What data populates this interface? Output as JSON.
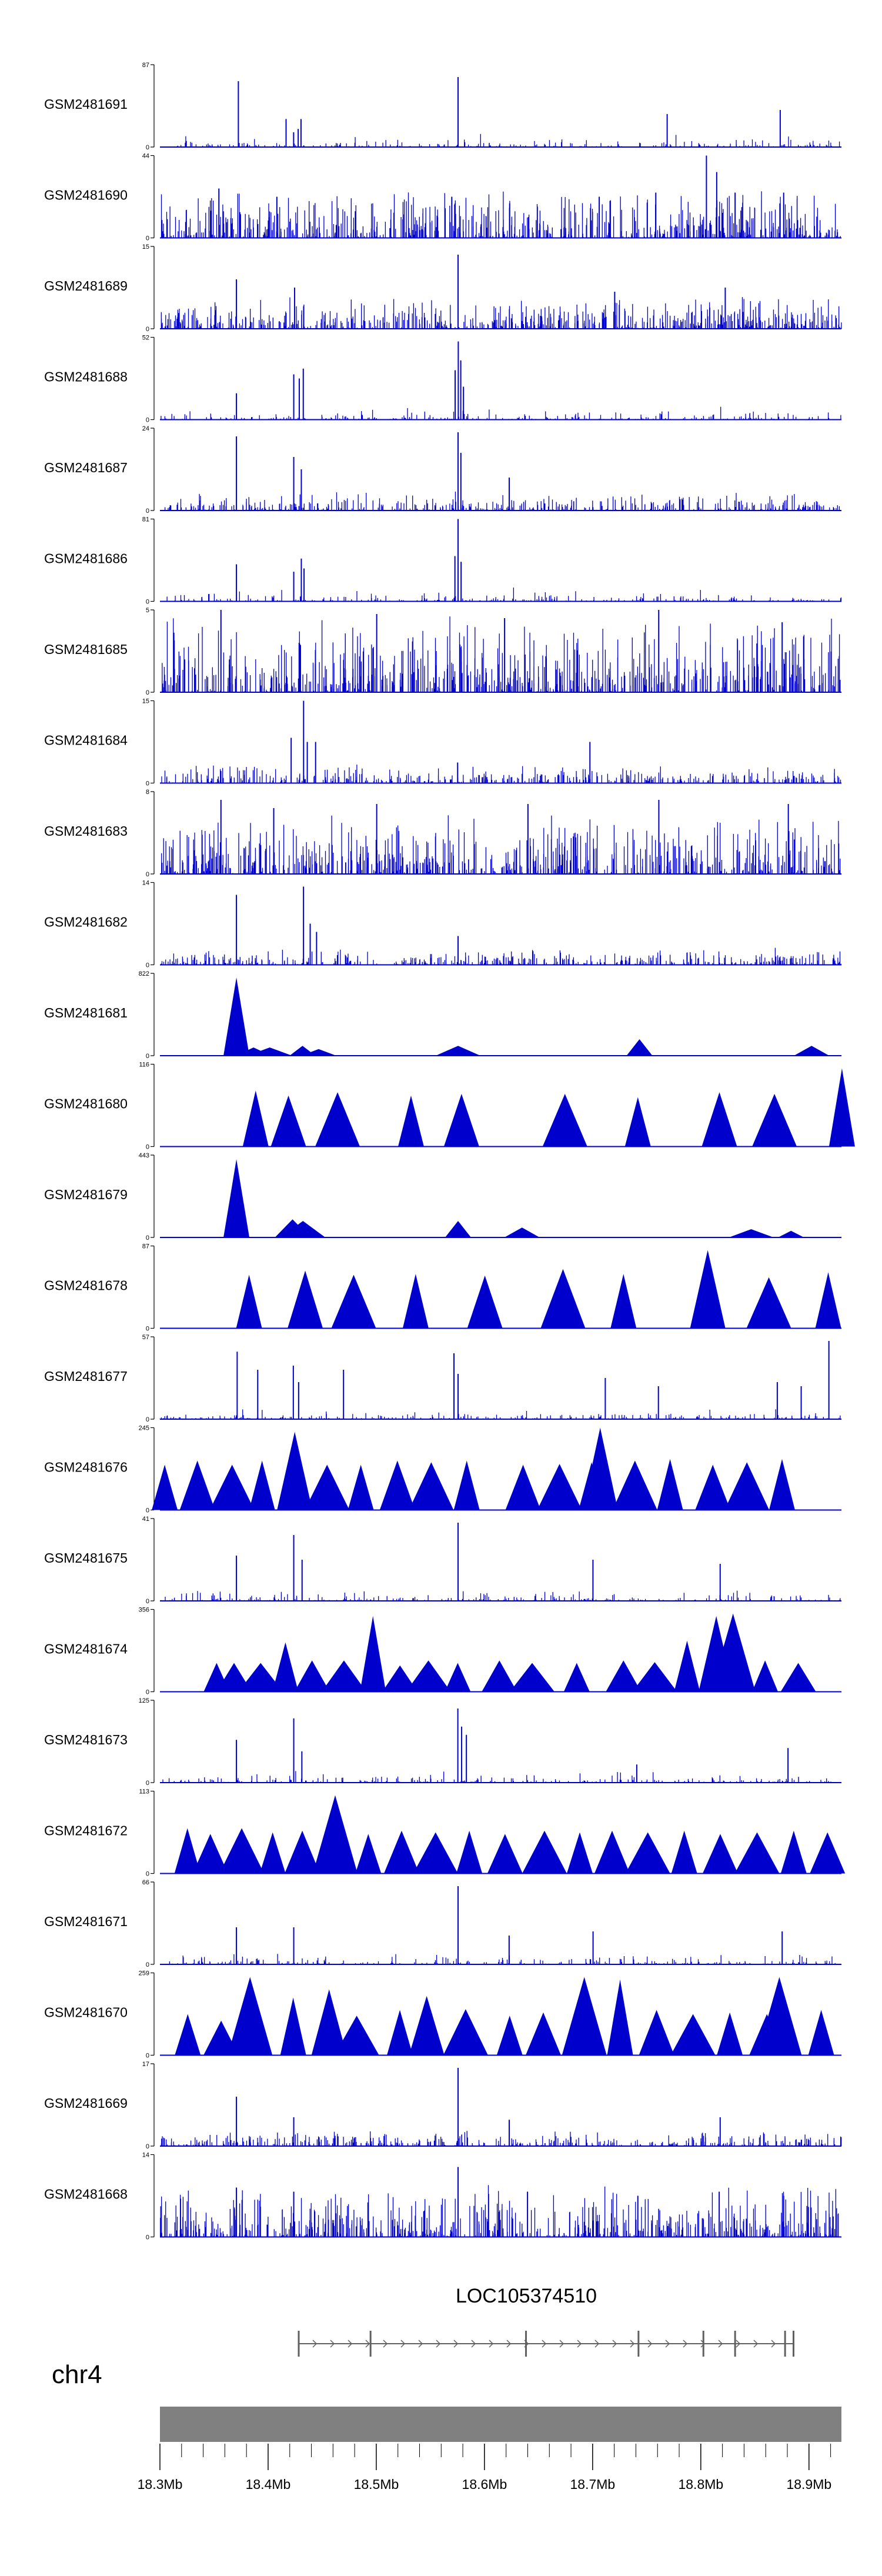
{
  "colors": {
    "signal": "#0000cc",
    "axis": "#000000",
    "ideogram": "#808080",
    "gene": "#606060"
  },
  "chart_data": {
    "type": "area",
    "tracks": [
      {
        "name": "GSM2481691",
        "ymax": "87",
        "ymin": "0",
        "style": "sparse",
        "base": 3,
        "noise": 5,
        "peaks": [
          [
            18.3725,
            0.8
          ],
          [
            18.4166,
            0.34
          ],
          [
            18.4236,
            0.18
          ],
          [
            18.4278,
            0.22
          ],
          [
            18.4304,
            0.34
          ],
          [
            18.5756,
            0.85
          ],
          [
            18.7689,
            0.4
          ],
          [
            18.8734,
            0.45
          ]
        ]
      },
      {
        "name": "GSM2481690",
        "ymax": "44",
        "ymin": "0",
        "style": "dense",
        "base": 22,
        "noise": 40,
        "peaks": [
          [
            18.3545,
            0.6
          ],
          [
            18.4081,
            0.5
          ],
          [
            18.5698,
            0.5
          ],
          [
            18.6233,
            0.42
          ],
          [
            18.7061,
            0.5
          ],
          [
            18.7584,
            0.55
          ],
          [
            18.8052,
            1.0
          ],
          [
            18.8147,
            0.8
          ],
          [
            18.8317,
            0.55
          ],
          [
            18.8766,
            0.55
          ]
        ]
      },
      {
        "name": "GSM2481689",
        "ymax": "15",
        "ymin": "0",
        "style": "dense",
        "base": 12,
        "noise": 30,
        "peaks": [
          [
            18.3707,
            0.6
          ],
          [
            18.4245,
            0.5
          ],
          [
            18.5756,
            0.9
          ],
          [
            18.7204,
            0.45
          ],
          [
            18.8226,
            0.5
          ]
        ]
      },
      {
        "name": "GSM2481688",
        "ymax": "52",
        "ymin": "0",
        "style": "sparse",
        "base": 3,
        "noise": 5,
        "peaks": [
          [
            18.3707,
            0.32
          ],
          [
            18.4237,
            0.55
          ],
          [
            18.4288,
            0.5
          ],
          [
            18.4325,
            0.62
          ],
          [
            18.5729,
            0.6
          ],
          [
            18.5758,
            0.95
          ],
          [
            18.5781,
            0.72
          ],
          [
            18.5806,
            0.4
          ]
        ]
      },
      {
        "name": "GSM2481687",
        "ymax": "24",
        "ymin": "0",
        "style": "medium",
        "base": 6,
        "noise": 18,
        "peaks": [
          [
            18.3707,
            0.9
          ],
          [
            18.4237,
            0.65
          ],
          [
            18.4307,
            0.5
          ],
          [
            18.5756,
            0.95
          ],
          [
            18.5782,
            0.7
          ],
          [
            18.6229,
            0.4
          ]
        ]
      },
      {
        "name": "GSM2481686",
        "ymax": "81",
        "ymin": "0",
        "style": "sparse",
        "base": 3,
        "noise": 5,
        "peaks": [
          [
            18.3707,
            0.45
          ],
          [
            18.4237,
            0.36
          ],
          [
            18.4307,
            0.52
          ],
          [
            18.4332,
            0.4
          ],
          [
            18.5727,
            0.55
          ],
          [
            18.5756,
            1.0
          ],
          [
            18.5784,
            0.48
          ]
        ]
      },
      {
        "name": "GSM2481685",
        "ymax": "5",
        "ymin": "0",
        "style": "dense",
        "base": 50,
        "noise": 45,
        "peaks": [
          [
            18.3564,
            1.0
          ],
          [
            18.5004,
            0.95
          ],
          [
            18.6186,
            0.9
          ],
          [
            18.7611,
            1.0
          ],
          [
            18.8752,
            0.85
          ]
        ]
      },
      {
        "name": "GSM2481684",
        "ymax": "15",
        "ymin": "0",
        "style": "medium",
        "base": 6,
        "noise": 18,
        "peaks": [
          [
            18.4213,
            0.55
          ],
          [
            18.4328,
            1.0
          ],
          [
            18.4362,
            0.5
          ],
          [
            18.4439,
            0.5
          ],
          [
            18.5752,
            0.25
          ],
          [
            18.6975,
            0.5
          ]
        ]
      },
      {
        "name": "GSM2481683",
        "ymax": "8",
        "ymin": "0",
        "style": "dense",
        "base": 35,
        "noise": 40,
        "peaks": [
          [
            18.3564,
            0.9
          ],
          [
            18.4052,
            0.8
          ],
          [
            18.5004,
            0.85
          ],
          [
            18.6402,
            0.85
          ],
          [
            18.7612,
            0.9
          ],
          [
            18.8809,
            0.85
          ]
        ]
      },
      {
        "name": "GSM2481682",
        "ymax": "14",
        "ymin": "0",
        "style": "medium",
        "base": 5,
        "noise": 16,
        "peaks": [
          [
            18.3707,
            0.85
          ],
          [
            18.4327,
            0.95
          ],
          [
            18.4389,
            0.5
          ],
          [
            18.4448,
            0.4
          ],
          [
            18.5756,
            0.35
          ]
        ]
      },
      {
        "name": "GSM2481681",
        "ymax": "822",
        "ymin": "0",
        "style": "tri",
        "base": 0,
        "noise": 0,
        "peaks": [
          [
            18.3707,
            0.95
          ],
          [
            18.3865,
            0.1
          ],
          [
            18.4015,
            0.1
          ],
          [
            18.4318,
            0.12
          ],
          [
            18.4467,
            0.08
          ],
          [
            18.5756,
            0.12
          ],
          [
            18.7433,
            0.2
          ],
          [
            18.9024,
            0.12
          ]
        ]
      },
      {
        "name": "GSM2481680",
        "ymax": "116",
        "ymin": "0",
        "style": "tri",
        "base": 0,
        "noise": 0,
        "peaks": [
          [
            18.3885,
            0.68
          ],
          [
            18.4188,
            0.62
          ],
          [
            18.4642,
            0.66
          ],
          [
            18.5321,
            0.62
          ],
          [
            18.5788,
            0.64
          ],
          [
            18.6744,
            0.64
          ],
          [
            18.7418,
            0.6
          ],
          [
            18.8172,
            0.66
          ],
          [
            18.8681,
            0.64
          ],
          [
            18.9305,
            0.95
          ]
        ]
      },
      {
        "name": "GSM2481679",
        "ymax": "443",
        "ymin": "0",
        "style": "tri",
        "base": 0,
        "noise": 0,
        "peaks": [
          [
            18.3707,
            0.95
          ],
          [
            18.4226,
            0.22
          ],
          [
            18.4322,
            0.2
          ],
          [
            18.5756,
            0.2
          ],
          [
            18.6347,
            0.12
          ],
          [
            18.8466,
            0.1
          ],
          [
            18.8834,
            0.08
          ]
        ]
      },
      {
        "name": "GSM2481678",
        "ymax": "87",
        "ymin": "0",
        "style": "tri",
        "base": 0,
        "noise": 0,
        "peaks": [
          [
            18.3824,
            0.65
          ],
          [
            18.4343,
            0.7
          ],
          [
            18.4791,
            0.65
          ],
          [
            18.5364,
            0.66
          ],
          [
            18.6004,
            0.64
          ],
          [
            18.6726,
            0.72
          ],
          [
            18.7285,
            0.66
          ],
          [
            18.8064,
            0.95
          ],
          [
            18.8629,
            0.62
          ],
          [
            18.9178,
            0.68
          ]
        ]
      },
      {
        "name": "GSM2481677",
        "ymax": "57",
        "ymin": "0",
        "style": "sparse",
        "base": 3,
        "noise": 6,
        "peaks": [
          [
            18.3714,
            0.82
          ],
          [
            18.3904,
            0.6
          ],
          [
            18.4233,
            0.65
          ],
          [
            18.4282,
            0.45
          ],
          [
            18.4697,
            0.6
          ],
          [
            18.5718,
            0.8
          ],
          [
            18.5756,
            0.55
          ],
          [
            18.7117,
            0.5
          ],
          [
            18.7608,
            0.4
          ],
          [
            18.8707,
            0.45
          ],
          [
            18.8928,
            0.4
          ],
          [
            18.9184,
            0.95
          ]
        ]
      },
      {
        "name": "GSM2481676",
        "ymax": "245",
        "ymin": "0",
        "style": "tri",
        "base": 0,
        "noise": 0,
        "peaks": [
          [
            18.3044,
            0.55
          ],
          [
            18.3346,
            0.6
          ],
          [
            18.3667,
            0.55
          ],
          [
            18.3944,
            0.6
          ],
          [
            18.4246,
            0.95
          ],
          [
            18.4545,
            0.55
          ],
          [
            18.4857,
            0.55
          ],
          [
            18.5195,
            0.6
          ],
          [
            18.5508,
            0.58
          ],
          [
            18.5836,
            0.6
          ],
          [
            18.6357,
            0.55
          ],
          [
            18.6694,
            0.56
          ],
          [
            18.699,
            0.58
          ],
          [
            18.707,
            1.0
          ],
          [
            18.7391,
            0.6
          ],
          [
            18.7716,
            0.62
          ],
          [
            18.8111,
            0.55
          ],
          [
            18.8426,
            0.58
          ],
          [
            18.8751,
            0.62
          ]
        ]
      },
      {
        "name": "GSM2481675",
        "ymax": "41",
        "ymin": "0",
        "style": "sparse",
        "base": 4,
        "noise": 8,
        "peaks": [
          [
            18.3707,
            0.55
          ],
          [
            18.4237,
            0.8
          ],
          [
            18.4314,
            0.5
          ],
          [
            18.5756,
            0.95
          ],
          [
            18.7003,
            0.5
          ],
          [
            18.8179,
            0.45
          ]
        ]
      },
      {
        "name": "GSM2481674",
        "ymax": "356",
        "ymin": "0",
        "style": "tri",
        "base": 0,
        "noise": 0,
        "peaks": [
          [
            18.3524,
            0.35
          ],
          [
            18.3685,
            0.35
          ],
          [
            18.3931,
            0.35
          ],
          [
            18.416,
            0.6
          ],
          [
            18.4406,
            0.38
          ],
          [
            18.4701,
            0.38
          ],
          [
            18.4969,
            0.92
          ],
          [
            18.5219,
            0.32
          ],
          [
            18.5482,
            0.38
          ],
          [
            18.5753,
            0.35
          ],
          [
            18.6138,
            0.38
          ],
          [
            18.6441,
            0.35
          ],
          [
            18.6853,
            0.35
          ],
          [
            18.7285,
            0.38
          ],
          [
            18.7574,
            0.36
          ],
          [
            18.7873,
            0.62
          ],
          [
            18.8143,
            0.92
          ],
          [
            18.8298,
            0.95
          ],
          [
            18.8594,
            0.38
          ],
          [
            18.8901,
            0.35
          ]
        ]
      },
      {
        "name": "GSM2481673",
        "ymax": "125",
        "ymin": "0",
        "style": "sparse",
        "base": 2,
        "noise": 4,
        "peaks": [
          [
            18.3707,
            0.52
          ],
          [
            18.4237,
            0.78
          ],
          [
            18.4312,
            0.38
          ],
          [
            18.5754,
            0.9
          ],
          [
            18.5789,
            0.68
          ],
          [
            18.5833,
            0.58
          ],
          [
            18.7408,
            0.22
          ],
          [
            18.8806,
            0.42
          ]
        ]
      },
      {
        "name": "GSM2481672",
        "ymax": "113",
        "ymin": "0",
        "style": "tri",
        "base": 0,
        "noise": 0,
        "peaks": [
          [
            18.3254,
            0.55
          ],
          [
            18.3466,
            0.48
          ],
          [
            18.3756,
            0.55
          ],
          [
            18.4042,
            0.5
          ],
          [
            18.4316,
            0.52
          ],
          [
            18.462,
            0.95
          ],
          [
            18.4926,
            0.48
          ],
          [
            18.5234,
            0.52
          ],
          [
            18.5548,
            0.5
          ],
          [
            18.586,
            0.52
          ],
          [
            18.619,
            0.48
          ],
          [
            18.6555,
            0.52
          ],
          [
            18.6881,
            0.5
          ],
          [
            18.718,
            0.52
          ],
          [
            18.751,
            0.5
          ],
          [
            18.7847,
            0.52
          ],
          [
            18.818,
            0.48
          ],
          [
            18.852,
            0.5
          ],
          [
            18.8859,
            0.52
          ],
          [
            18.9171,
            0.5
          ]
        ]
      },
      {
        "name": "GSM2481671",
        "ymax": "66",
        "ymin": "0",
        "style": "sparse",
        "base": 4,
        "noise": 7,
        "peaks": [
          [
            18.3707,
            0.45
          ],
          [
            18.4237,
            0.45
          ],
          [
            18.5756,
            0.95
          ],
          [
            18.6228,
            0.35
          ],
          [
            18.7004,
            0.4
          ],
          [
            18.8752,
            0.4
          ]
        ]
      },
      {
        "name": "GSM2481670",
        "ymax": "259",
        "ymin": "0",
        "style": "tri",
        "base": 0,
        "noise": 0,
        "peaks": [
          [
            18.3257,
            0.5
          ],
          [
            18.3566,
            0.42
          ],
          [
            18.3833,
            0.95
          ],
          [
            18.4232,
            0.7
          ],
          [
            18.4564,
            0.8
          ],
          [
            18.4819,
            0.48
          ],
          [
            18.5218,
            0.55
          ],
          [
            18.5466,
            0.72
          ],
          [
            18.5826,
            0.56
          ],
          [
            18.6233,
            0.48
          ],
          [
            18.6544,
            0.52
          ],
          [
            18.6923,
            0.95
          ],
          [
            18.7254,
            0.92
          ],
          [
            18.7591,
            0.55
          ],
          [
            18.7928,
            0.5
          ],
          [
            18.8268,
            0.52
          ],
          [
            18.8611,
            0.5
          ],
          [
            18.8726,
            0.95
          ],
          [
            18.9113,
            0.55
          ]
        ]
      },
      {
        "name": "GSM2481669",
        "ymax": "17",
        "ymin": "0",
        "style": "medium",
        "base": 5,
        "noise": 14,
        "peaks": [
          [
            18.3707,
            0.6
          ],
          [
            18.4237,
            0.35
          ],
          [
            18.5756,
            0.95
          ],
          [
            18.6229,
            0.32
          ],
          [
            18.8179,
            0.35
          ]
        ]
      },
      {
        "name": "GSM2481668",
        "ymax": "14",
        "ymin": "0",
        "style": "dense",
        "base": 20,
        "noise": 45,
        "peaks": [
          [
            18.3707,
            0.6
          ],
          [
            18.4237,
            0.55
          ],
          [
            18.5756,
            0.85
          ],
          [
            18.6398,
            0.55
          ],
          [
            18.7418,
            0.5
          ],
          [
            18.817,
            0.55
          ],
          [
            18.8766,
            0.5
          ]
        ]
      }
    ],
    "gene": {
      "label": "LOC105374510",
      "start": 18.4283,
      "end": 18.8857,
      "exons": [
        18.4283,
        18.4947,
        18.6384,
        18.7424,
        18.8024,
        18.8317,
        18.8779,
        18.8857
      ]
    },
    "chromosome": {
      "name": "chr4",
      "xlim": [
        18.3,
        18.93
      ],
      "ticks": [
        "18.3Mb",
        "18.4Mb",
        "18.5Mb",
        "18.6Mb",
        "18.7Mb",
        "18.8Mb",
        "18.9Mb"
      ],
      "tick_values": [
        18.3,
        18.4,
        18.5,
        18.6,
        18.7,
        18.8,
        18.9
      ]
    }
  }
}
